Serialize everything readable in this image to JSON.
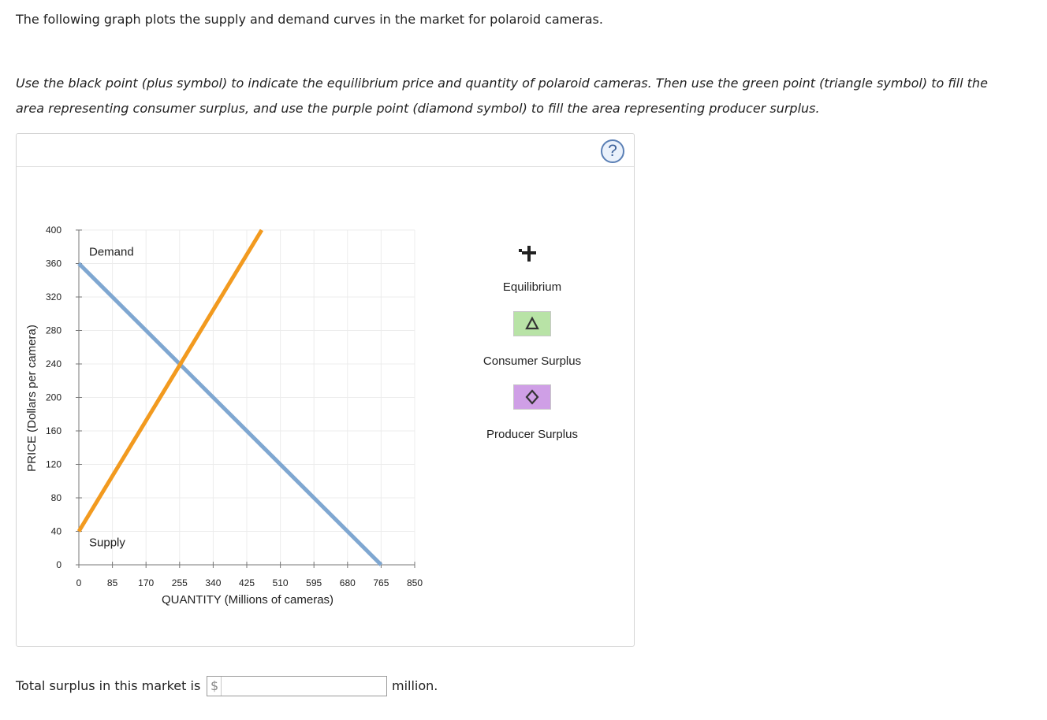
{
  "intro": "The following graph plots the supply and demand curves in the market for polaroid cameras.",
  "instructions": "Use the black point (plus symbol) to indicate the equilibrium price and quantity of polaroid cameras. Then use the green point (triangle symbol) to fill the area representing consumer surplus, and use the purple point (diamond symbol) to fill the area representing producer surplus.",
  "help_label": "?",
  "chart_data": {
    "type": "line",
    "xlabel": "QUANTITY (Millions of cameras)",
    "ylabel": "PRICE (Dollars per camera)",
    "xlim": [
      0,
      850
    ],
    "ylim": [
      0,
      400
    ],
    "xticks": [
      0,
      85,
      170,
      255,
      340,
      425,
      510,
      595,
      680,
      765,
      850
    ],
    "yticks": [
      0,
      40,
      80,
      120,
      160,
      200,
      240,
      280,
      320,
      360,
      400
    ],
    "grid": true,
    "series": [
      {
        "name": "Demand",
        "color": "#7fa7d1",
        "points": [
          [
            0,
            360
          ],
          [
            765,
            0
          ]
        ]
      },
      {
        "name": "Supply",
        "color": "#f29a1f",
        "points": [
          [
            0,
            40
          ],
          [
            462.8,
            400
          ]
        ]
      }
    ]
  },
  "legend": {
    "equilibrium": {
      "label": "Equilibrium",
      "icon": "plus-icon",
      "color": "#222222"
    },
    "consumer_surplus": {
      "label": "Consumer Surplus",
      "icon": "triangle-icon",
      "color": "#b8e3a6"
    },
    "producer_surplus": {
      "label": "Producer Surplus",
      "icon": "diamond-icon",
      "color": "#cf9fe6"
    }
  },
  "answer": {
    "label": "Total surplus in this market is",
    "prefix": "$",
    "value": "",
    "suffix": "million."
  }
}
